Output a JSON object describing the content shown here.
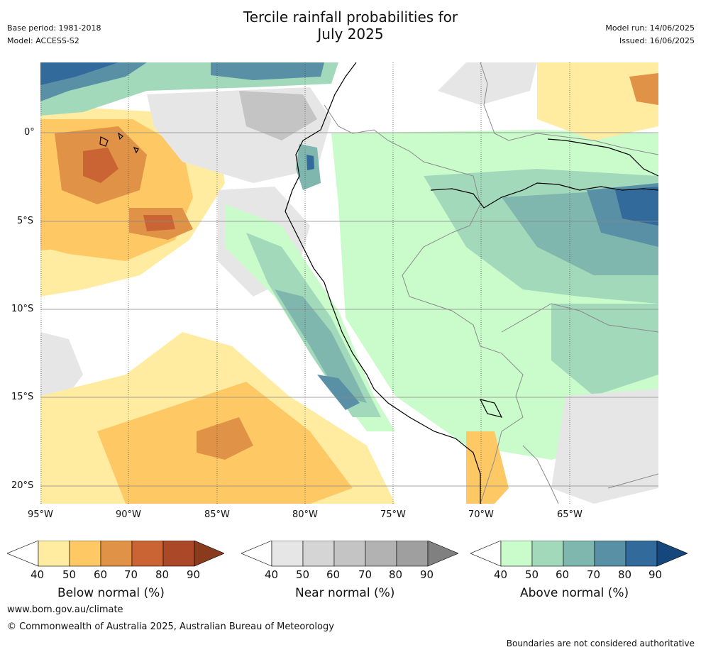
{
  "header": {
    "title_line1": "Tercile rainfall probabilities for",
    "title_line2": "July 2025",
    "base_period": "Base period: 1981-2018",
    "model": "Model: ACCESS-S2",
    "model_run": "Model run: 14/06/2025",
    "issued": "Issued: 16/06/2025"
  },
  "map": {
    "lat_labels": [
      "0°",
      "5°S",
      "10°S",
      "15°S",
      "20°S"
    ],
    "lon_labels": [
      "95°W",
      "90°W",
      "85°W",
      "80°W",
      "75°W",
      "70°W",
      "65°W"
    ],
    "lon_range": [
      -95.0,
      -60.0
    ],
    "lat_range": [
      -21.0,
      4.0
    ],
    "gridlines": true
  },
  "colorbars": [
    {
      "name": "below",
      "title": "Below normal (%)",
      "ticks": [
        "40",
        "50",
        "60",
        "70",
        "80",
        "90"
      ],
      "colors": [
        "#ffffff",
        "#ffeca1",
        "#fec965",
        "#e09246",
        "#cb6434",
        "#ab4827",
        "#8a3a1d"
      ]
    },
    {
      "name": "near",
      "title": "Near normal (%)",
      "ticks": [
        "40",
        "50",
        "60",
        "70",
        "80",
        "90"
      ],
      "colors": [
        "#ffffff",
        "#e6e6e6",
        "#d5d5d5",
        "#c4c4c4",
        "#b2b2b2",
        "#9f9f9f",
        "#808080"
      ]
    },
    {
      "name": "above",
      "title": "Above normal (%)",
      "ticks": [
        "40",
        "50",
        "60",
        "70",
        "80",
        "90"
      ],
      "colors": [
        "#ffffff",
        "#c9fbcb",
        "#a3d9bb",
        "#7fb6ae",
        "#5990a6",
        "#316a9b",
        "#16477c"
      ]
    }
  ],
  "footer": {
    "website": "www.bom.gov.au/climate",
    "copyright": "© Commonwealth of Australia 2025, Australian Bureau of Meteorology",
    "disclaimer": "Boundaries are not considered authoritative"
  }
}
